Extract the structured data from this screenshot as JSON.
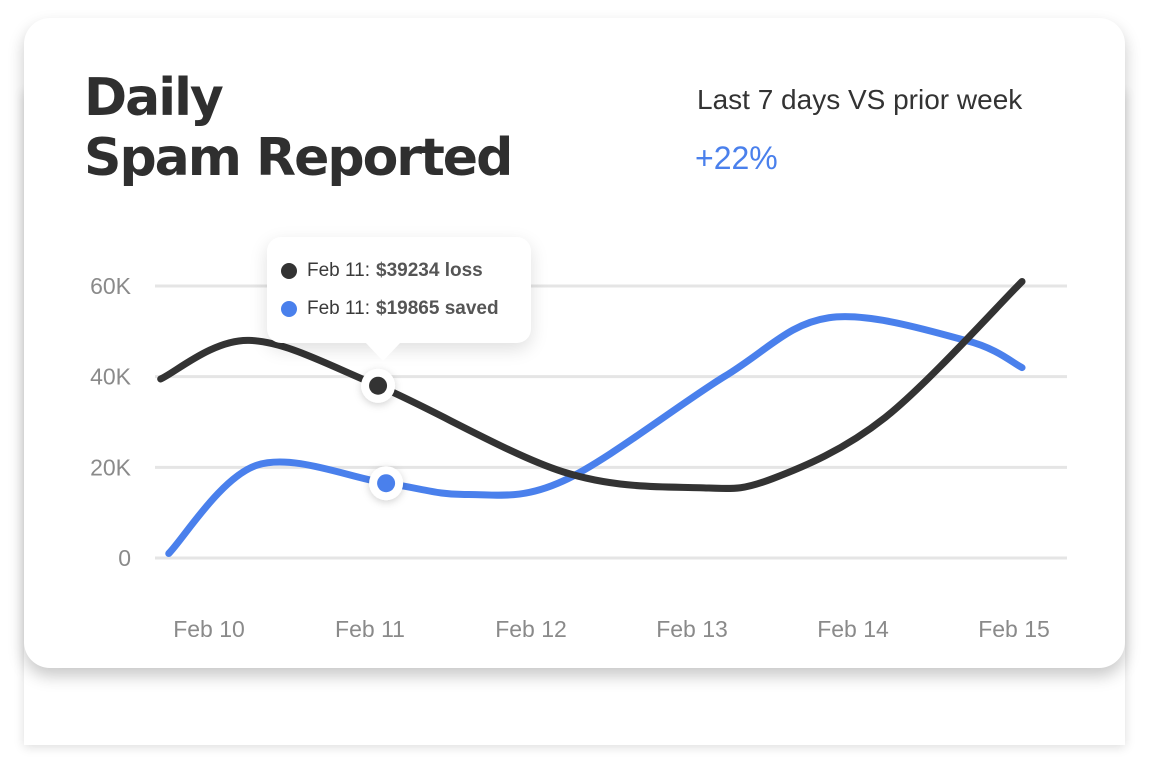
{
  "header": {
    "title_line1": "Daily",
    "title_line2": "Spam Reported",
    "compare_label": "Last 7 days VS prior week",
    "compare_value": "+22%"
  },
  "tooltip": {
    "rows": [
      {
        "date": "Feb 11:",
        "value": "$39234 loss",
        "color": "#333333"
      },
      {
        "date": "Feb 11:",
        "value": "$19865 saved",
        "color": "#4a80ec"
      }
    ]
  },
  "colors": {
    "loss": "#333333",
    "saved": "#4a80ec",
    "grid": "#e5e5e5",
    "axis_text": "#8a8a8a"
  },
  "chart_data": {
    "type": "line",
    "title": "Daily Spam Reported",
    "xlabel": "",
    "ylabel": "",
    "categories": [
      "Feb 10",
      "Feb 11",
      "Feb 12",
      "Feb 13",
      "Feb 14",
      "Feb 15"
    ],
    "y_ticks": [
      "0",
      "20K",
      "40K",
      "60K"
    ],
    "ylim": [
      0,
      60000
    ],
    "grid": true,
    "legend": "none",
    "highlight": {
      "category": "Feb 11"
    },
    "series": [
      {
        "name": "$39234 loss",
        "color": "#333333",
        "points": [
          {
            "x": 9.7,
            "y": 39500
          },
          {
            "x": 10.25,
            "y": 48000
          },
          {
            "x": 11.05,
            "y": 38000
          },
          {
            "x": 12.2,
            "y": 19000
          },
          {
            "x": 13.05,
            "y": 15500
          },
          {
            "x": 13.5,
            "y": 17500
          },
          {
            "x": 14.2,
            "y": 31000
          },
          {
            "x": 15.05,
            "y": 61000
          }
        ]
      },
      {
        "name": "$19865 saved",
        "color": "#4a80ec",
        "points": [
          {
            "x": 9.75,
            "y": 1000
          },
          {
            "x": 10.3,
            "y": 20500
          },
          {
            "x": 11.1,
            "y": 16500
          },
          {
            "x": 11.6,
            "y": 14000
          },
          {
            "x": 12.2,
            "y": 17000
          },
          {
            "x": 13.2,
            "y": 40000
          },
          {
            "x": 13.85,
            "y": 53000
          },
          {
            "x": 14.7,
            "y": 48000
          },
          {
            "x": 15.05,
            "y": 42000
          }
        ]
      }
    ]
  }
}
